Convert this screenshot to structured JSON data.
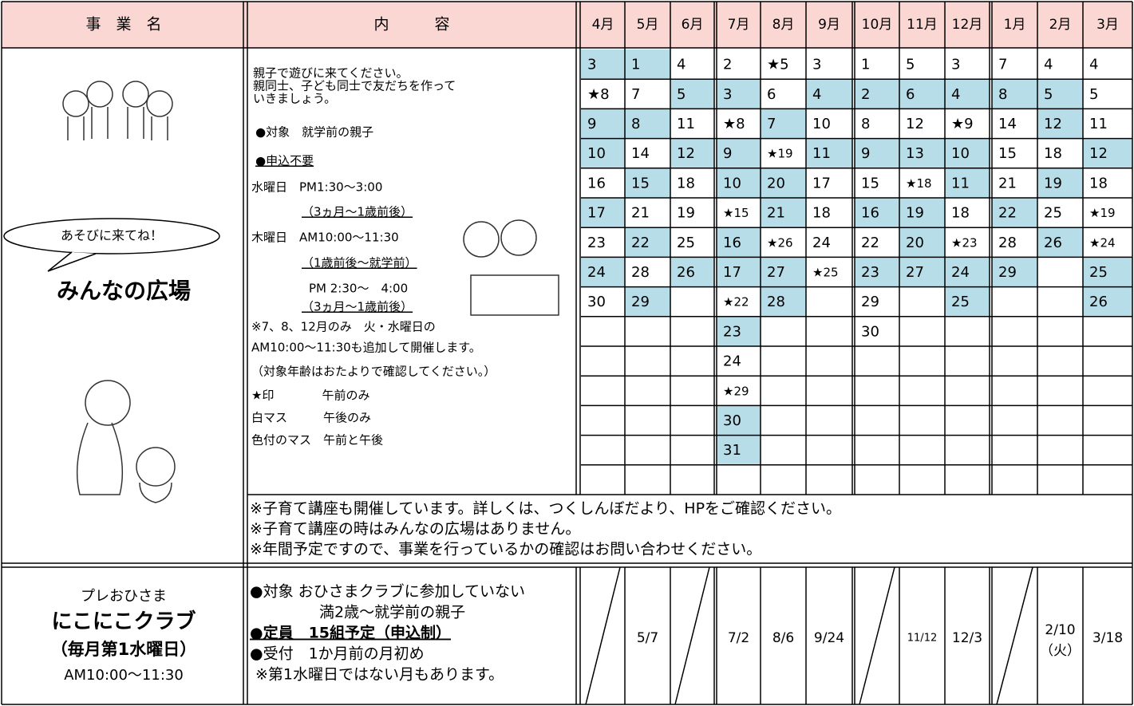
{
  "header": {
    "name": "事　業　名",
    "content": "内　　　容",
    "months": [
      "4月",
      "5月",
      "6月",
      "7月",
      "8月",
      "9月",
      "10月",
      "11月",
      "12月",
      "1月",
      "2月",
      "3月"
    ]
  },
  "hiroba": {
    "bubble": "あそびに来てね！",
    "title": "みんなの広場",
    "content": [
      "親子で遊びに来てください。",
      "親同士、子ども同士で友だちを作って",
      "いきましょう。",
      "●対象　就学前の親子",
      "●申込不要",
      "水曜日　PM1:30～3:00",
      "（3ヵ月～1歳前後）",
      "木曜日　AM10:00～11:30",
      "（1歳前後～就学前）",
      "PM 2:30～　4:00",
      "（3ヵ月～1歳前後）",
      "※7、8、12月のみ　火・水曜日の",
      "AM10:00～11:30も追加して開催します。",
      "（対象年齢はおたよりで確認してください。）",
      "★印　　　　午前のみ",
      "白マス　　　午後のみ",
      "色付のマス　午前と午後"
    ],
    "days": [
      [
        "3",
        "★8",
        "9",
        "10",
        "16",
        "17",
        "23",
        "24",
        "30"
      ],
      [
        "1",
        "7",
        "8",
        "14",
        "15",
        "21",
        "22",
        "28",
        "29"
      ],
      [
        "4",
        "5",
        "11",
        "12",
        "18",
        "19",
        "25",
        "26"
      ],
      [
        "2",
        "3",
        "★8",
        "9",
        "10",
        "★15",
        "16",
        "17",
        "★22",
        "23",
        "24",
        "★29",
        "30",
        "31"
      ],
      [
        "★5",
        "6",
        "7",
        "★19",
        "20",
        "21",
        "★26",
        "27",
        "28"
      ],
      [
        "3",
        "4",
        "10",
        "11",
        "17",
        "18",
        "24",
        "★25"
      ],
      [
        "1",
        "2",
        "8",
        "9",
        "15",
        "16",
        "22",
        "23",
        "29",
        "30"
      ],
      [
        "5",
        "6",
        "12",
        "13",
        "★18",
        "19",
        "20",
        "27"
      ],
      [
        "3",
        "4",
        "★9",
        "10",
        "11",
        "18",
        "★23",
        "24",
        "25"
      ],
      [
        "7",
        "8",
        "14",
        "15",
        "21",
        "22",
        "28",
        "29"
      ],
      [
        "4",
        "5",
        "12",
        "18",
        "19",
        "25",
        "26"
      ],
      [
        "4",
        "5",
        "11",
        "12",
        "18",
        "★19",
        "★24",
        "25",
        "26"
      ]
    ],
    "shaded": [
      [
        true,
        false,
        true,
        true,
        false,
        true,
        false,
        true,
        false
      ],
      [
        true,
        false,
        true,
        false,
        true,
        false,
        true,
        false,
        true
      ],
      [
        false,
        true,
        false,
        true,
        false,
        false,
        false,
        true
      ],
      [
        false,
        true,
        false,
        true,
        true,
        false,
        true,
        true,
        false,
        true,
        false,
        false,
        true,
        true
      ],
      [
        false,
        false,
        true,
        false,
        true,
        true,
        false,
        true,
        true
      ],
      [
        false,
        true,
        false,
        true,
        false,
        false,
        false,
        false
      ],
      [
        false,
        true,
        false,
        true,
        false,
        true,
        false,
        true,
        false,
        false
      ],
      [
        false,
        true,
        false,
        true,
        false,
        true,
        true,
        true
      ],
      [
        false,
        true,
        false,
        true,
        true,
        false,
        false,
        true,
        true
      ],
      [
        false,
        true,
        false,
        false,
        false,
        true,
        false,
        true
      ],
      [
        false,
        true,
        true,
        false,
        true,
        false,
        true
      ],
      [
        false,
        false,
        false,
        true,
        false,
        false,
        false,
        true,
        true
      ]
    ],
    "notes": [
      "※子育て講座も開催しています。詳しくは、つくしんぼだより、HPをご確認ください。",
      "※子育て講座の時はみんなの広場はありません。",
      "※年間予定ですので、事業を行っているかの確認はお問い合わせください。"
    ]
  },
  "club": {
    "pre": "プレおひさま",
    "title": "にこにこクラブ",
    "schedule": "（毎月第1水曜日）",
    "time": "AM10:00～11:30",
    "content": [
      "●対象 おひさまクラブに参加していない",
      "満2歳～就学前の親子",
      "●定員　15組予定（申込制）",
      "●受付　1か月前の月初め",
      "※第1水曜日ではない月もあります。"
    ],
    "dates": [
      null,
      [
        "5/7"
      ],
      null,
      [
        "7/2"
      ],
      [
        "8/6"
      ],
      [
        "9/24"
      ],
      null,
      [
        "11/12"
      ],
      [
        "12/3"
      ],
      null,
      [
        "2/10",
        "（火）"
      ],
      [
        "3/18"
      ]
    ]
  }
}
